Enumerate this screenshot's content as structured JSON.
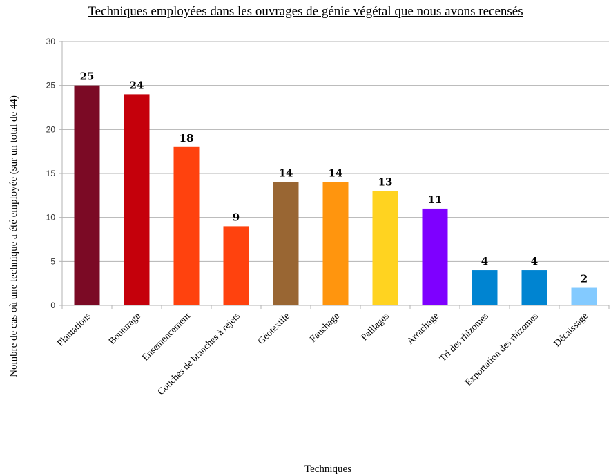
{
  "chart_data": {
    "type": "bar",
    "title": "Techniques employées dans les ouvrages de génie végétal que nous avons recensés",
    "xlabel": "Techniques",
    "ylabel": "Nombre de cas où une technique a été employée (sur un total de 44)",
    "ylim": [
      0,
      30
    ],
    "yticks": [
      0,
      5,
      10,
      15,
      20,
      25,
      30
    ],
    "grid": true,
    "categories": [
      "Plantations",
      "Bouturage",
      "Ensemencement",
      "Couches de branches à rejets",
      "Géotextile",
      "Fauchage",
      "Paillages",
      "Arrachage",
      "Tri des rhizomes",
      "Exportation des rhizomes",
      "Décaissage"
    ],
    "values": [
      25,
      24,
      18,
      9,
      14,
      14,
      13,
      11,
      4,
      4,
      2
    ],
    "colors": [
      "#7b0a25",
      "#c5000b",
      "#ff420e",
      "#ff420e",
      "#996633",
      "#ff950e",
      "#ffd320",
      "#7e00ff",
      "#0084d1",
      "#0084d1",
      "#83caff"
    ]
  }
}
